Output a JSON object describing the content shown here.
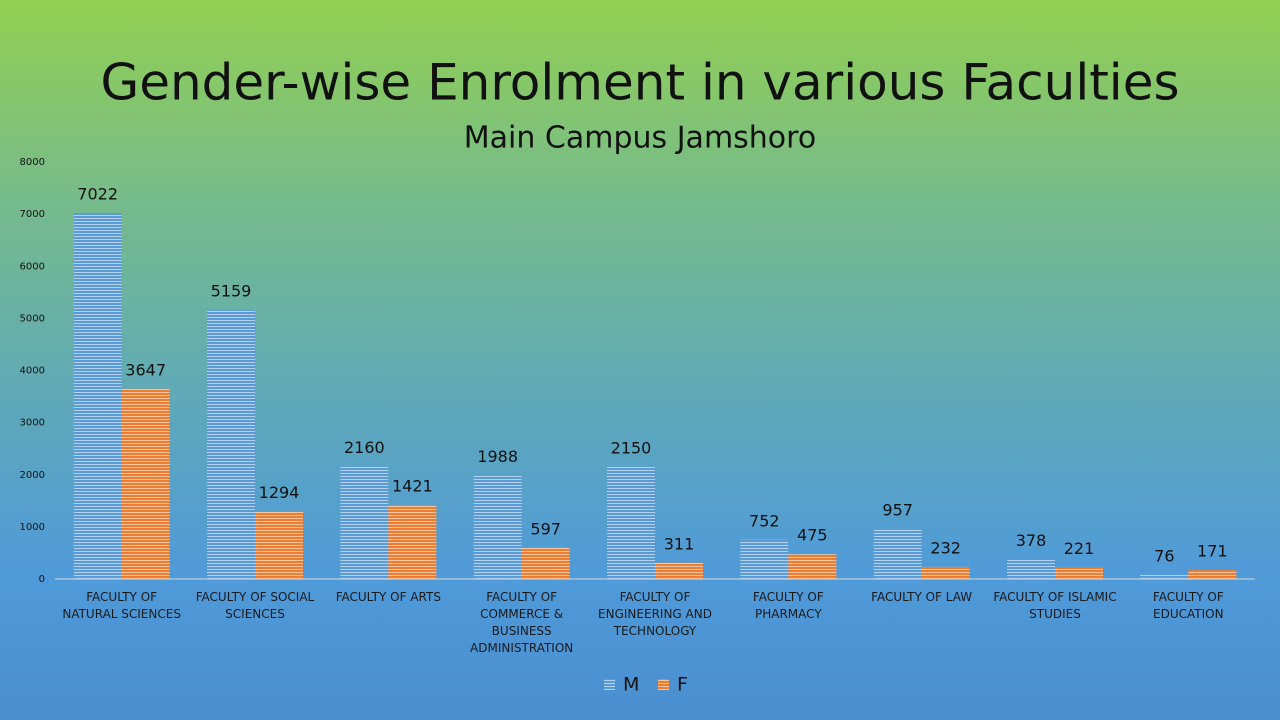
{
  "chart_data": {
    "type": "bar",
    "title": "Gender-wise Enrolment in various Faculties",
    "subtitle": "Main Campus Jamshoro",
    "categories": [
      "FACULTY OF NATURAL SCIENCES",
      "FACULTY OF SOCIAL SCIENCES",
      "FACULTY OF ARTS",
      "FACULTY OF COMMERCE & BUSINESS ADMINISTRATION",
      "FACULTY OF ENGINEERING AND TECHNOLOGY",
      "FACULTY OF PHARMACY",
      "FACULTY OF LAW",
      "FACULTY OF ISLAMIC STUDIES",
      "FACULTY OF EDUCATION"
    ],
    "series": [
      {
        "name": "M",
        "color": "#5b9bd5",
        "values": [
          7022,
          5159,
          2160,
          1988,
          2150,
          752,
          957,
          378,
          76
        ]
      },
      {
        "name": "F",
        "color": "#ed7d31",
        "values": [
          3647,
          1294,
          1421,
          597,
          311,
          475,
          232,
          221,
          171
        ]
      }
    ],
    "ylim": [
      0,
      8000
    ],
    "yticks": [
      0,
      1000,
      2000,
      3000,
      4000,
      5000,
      6000,
      7000,
      8000
    ],
    "grid": false,
    "legend": "bottom"
  }
}
